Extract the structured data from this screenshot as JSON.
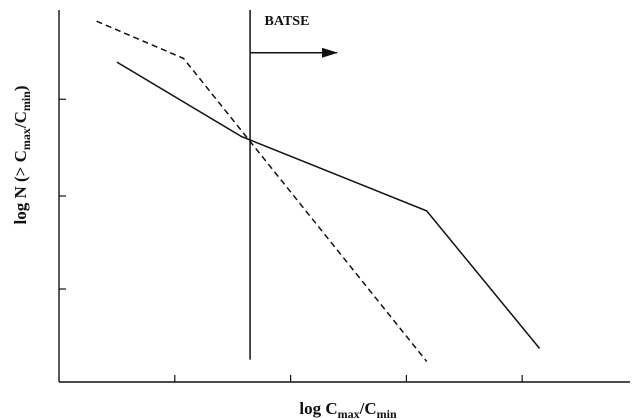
{
  "chart_data": {
    "type": "line",
    "title": "",
    "xlabel": {
      "base": "log C",
      "sub1": "max",
      "slash": "/C",
      "sub2": "min"
    },
    "ylabel": {
      "base": "log N (> C",
      "sub1": "max",
      "slash": "/C",
      "sub2": "min",
      "close": ")"
    },
    "xlim": [
      0,
      10
    ],
    "ylim": [
      0,
      10
    ],
    "grid": false,
    "legend": "none",
    "x_ticks": [
      2,
      4,
      6,
      8
    ],
    "y_ticks": [
      2.5,
      5,
      7.6
    ],
    "series": [
      {
        "style": "solid",
        "points": [
          [
            1,
            8.6
          ],
          [
            3.15,
            6.6
          ],
          [
            6.35,
            4.6
          ],
          [
            8.3,
            0.9
          ]
        ]
      },
      {
        "style": "dashed",
        "points": [
          [
            0.65,
            9.7
          ],
          [
            2.15,
            8.7
          ],
          [
            6.35,
            0.55
          ]
        ]
      }
    ],
    "annotations": [
      {
        "type": "vertical_line",
        "x": 3.3,
        "y_from": 0.6,
        "y_to": 10,
        "style": "solid"
      },
      {
        "type": "arrow",
        "x_from": 3.3,
        "x_to": 4.8,
        "y": 8.85
      },
      {
        "type": "text",
        "text": "BATSE",
        "x": 3.55,
        "y": 9.6
      }
    ]
  }
}
